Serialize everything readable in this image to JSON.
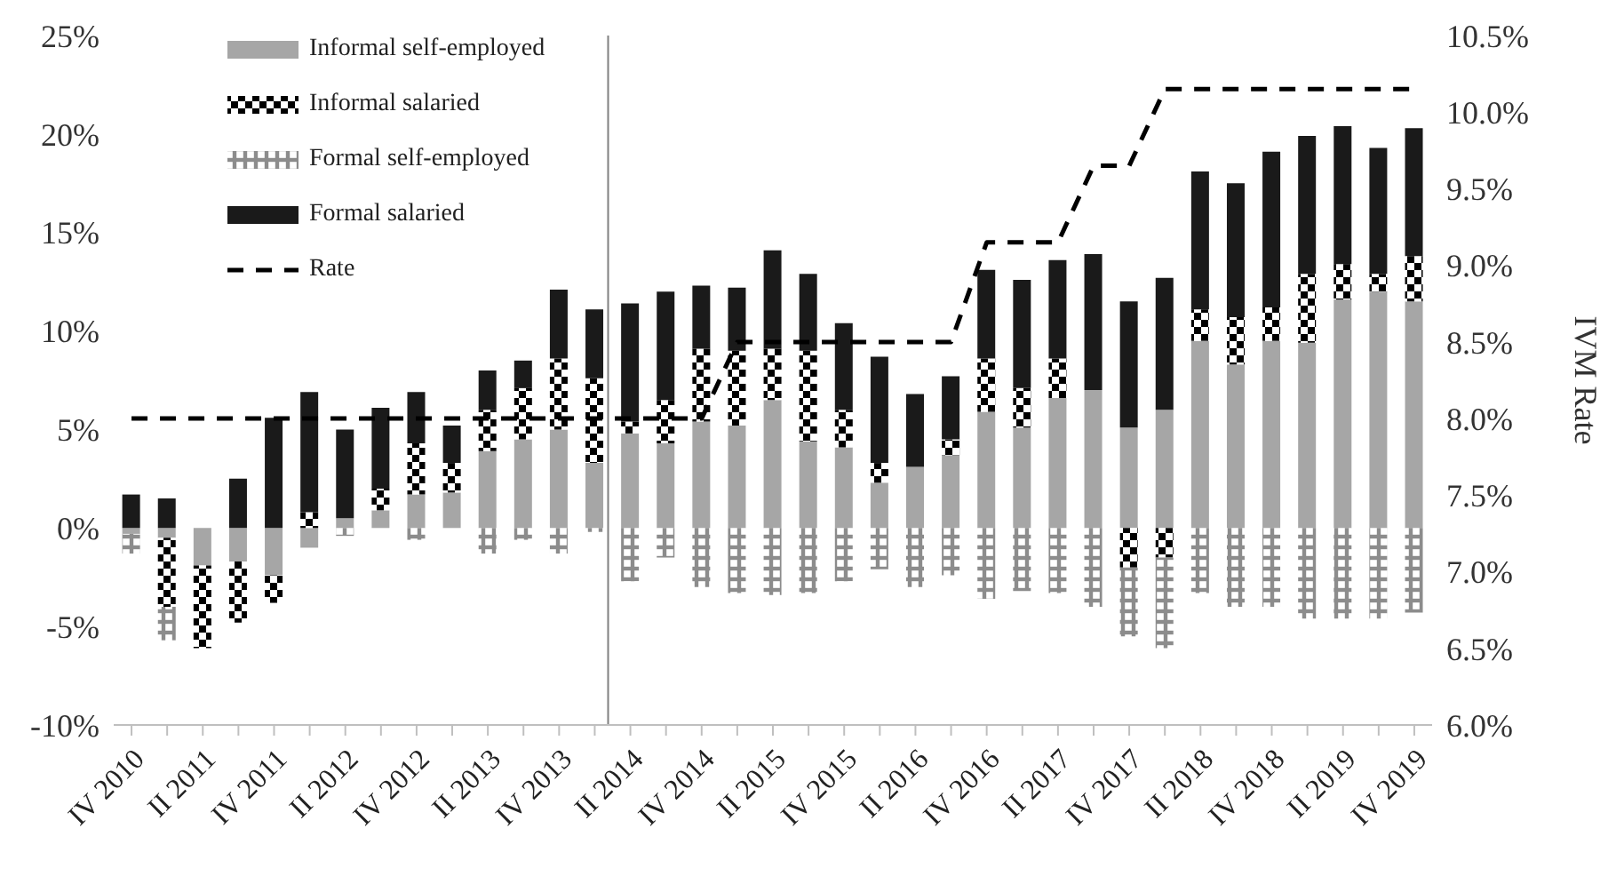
{
  "chart_data": {
    "type": "bar",
    "stacked": true,
    "ylabel": null,
    "y2label": "IVM Rate",
    "categories": [
      "IV 2010",
      null,
      "II 2011",
      null,
      "IV 2011",
      null,
      "II 2012",
      null,
      "IV 2012",
      null,
      "II 2013",
      null,
      "IV 2013",
      null,
      "II 2014",
      null,
      "IV 2014",
      null,
      "II 2015",
      null,
      "IV 2015",
      null,
      "II 2016",
      null,
      "IV 2016",
      null,
      "II 2017",
      null,
      "IV 2017",
      null,
      "II 2018",
      null,
      "IV 2018",
      null,
      "II 2019",
      null,
      "IV 2019"
    ],
    "series": [
      {
        "name": "Informal self-employed",
        "color": "#a6a6a6",
        "values": [
          -0.3,
          -0.5,
          -1.9,
          -1.7,
          -2.4,
          -1.0,
          0.5,
          0.9,
          1.7,
          1.8,
          3.9,
          4.5,
          5.0,
          3.3,
          4.8,
          4.3,
          5.4,
          5.2,
          6.5,
          4.4,
          4.1,
          2.3,
          3.1,
          3.7,
          5.9,
          5.1,
          6.6,
          7.0,
          5.1,
          6.0,
          9.5,
          8.3,
          9.5,
          9.4,
          11.6,
          12.0,
          11.5
        ]
      },
      {
        "name": "Informal salaried",
        "color": "#000000",
        "values": [
          0,
          -3.5,
          -4.2,
          -3.1,
          -1.4,
          0.8,
          0,
          1.1,
          2.6,
          1.5,
          2.1,
          2.6,
          3.6,
          4.3,
          0.6,
          2.2,
          3.7,
          3.8,
          2.6,
          4.6,
          1.9,
          1.0,
          0,
          0.8,
          2.7,
          2.0,
          2.0,
          0,
          -2.0,
          -1.5,
          1.6,
          2.4,
          1.7,
          3.5,
          1.8,
          0.9,
          2.3
        ]
      },
      {
        "name": "Formal self-employed",
        "color": "#8c8c8c",
        "values": [
          -1.0,
          -1.7,
          0,
          0,
          0,
          0,
          -0.4,
          0,
          -0.6,
          0,
          -1.3,
          -0.6,
          -1.3,
          -0.2,
          -2.7,
          -1.5,
          -3.0,
          -3.3,
          -3.4,
          -3.3,
          -2.7,
          -2.1,
          -3.0,
          -2.4,
          -3.6,
          -3.2,
          -3.3,
          -4.0,
          -3.5,
          -4.6,
          -3.3,
          -4.0,
          -4.0,
          -4.6,
          -4.6,
          -4.6,
          -4.3
        ]
      },
      {
        "name": "Formal salaried",
        "color": "#1a1a1a",
        "values": [
          1.7,
          1.5,
          0,
          2.5,
          5.6,
          6.1,
          4.5,
          4.1,
          2.6,
          1.9,
          2.0,
          1.4,
          3.5,
          3.5,
          6.0,
          5.5,
          3.2,
          3.2,
          5.0,
          3.9,
          4.4,
          5.4,
          3.7,
          3.2,
          4.5,
          5.5,
          5.0,
          6.9,
          6.4,
          6.7,
          7.0,
          6.8,
          7.9,
          7.0,
          7.0,
          6.4,
          6.5
        ]
      },
      {
        "name": "Rate",
        "type": "line",
        "axis": "y2",
        "color": "#000000",
        "line_style": "dashed",
        "marker": "none",
        "values": [
          8.0,
          8.0,
          8.0,
          8.0,
          8.0,
          8.0,
          8.0,
          8.0,
          8.0,
          8.0,
          8.0,
          8.0,
          8.0,
          8.0,
          8.0,
          8.0,
          8.0,
          8.5,
          8.5,
          8.5,
          8.5,
          8.5,
          8.5,
          8.5,
          9.15,
          9.15,
          9.15,
          9.65,
          9.65,
          10.15,
          10.15,
          10.15,
          10.15,
          10.15,
          10.15,
          10.15,
          10.15
        ]
      }
    ],
    "ylim": [
      -10,
      25
    ],
    "yticks": [
      {
        "value": -10,
        "label": "-10%"
      },
      {
        "value": -5,
        "label": "-5%"
      },
      {
        "value": 0,
        "label": "0%"
      },
      {
        "value": 5,
        "label": "5%"
      },
      {
        "value": 10,
        "label": "10%"
      },
      {
        "value": 15,
        "label": "15%"
      },
      {
        "value": 20,
        "label": "20%"
      },
      {
        "value": 25,
        "label": "25%"
      }
    ],
    "y2lim": [
      6.0,
      10.5
    ],
    "y2ticks": [
      {
        "value": 6.0,
        "label": "6.0%"
      },
      {
        "value": 6.5,
        "label": "6.5%"
      },
      {
        "value": 7.0,
        "label": "7.0%"
      },
      {
        "value": 7.5,
        "label": "7.5%"
      },
      {
        "value": 8.0,
        "label": "8.0%"
      },
      {
        "value": 8.5,
        "label": "8.5%"
      },
      {
        "value": 9.0,
        "label": "9.0%"
      },
      {
        "value": 9.5,
        "label": "9.5%"
      },
      {
        "value": 10.0,
        "label": "10.0%"
      },
      {
        "value": 10.5,
        "label": "10.5%"
      }
    ],
    "grid": false,
    "legend": "top left"
  }
}
